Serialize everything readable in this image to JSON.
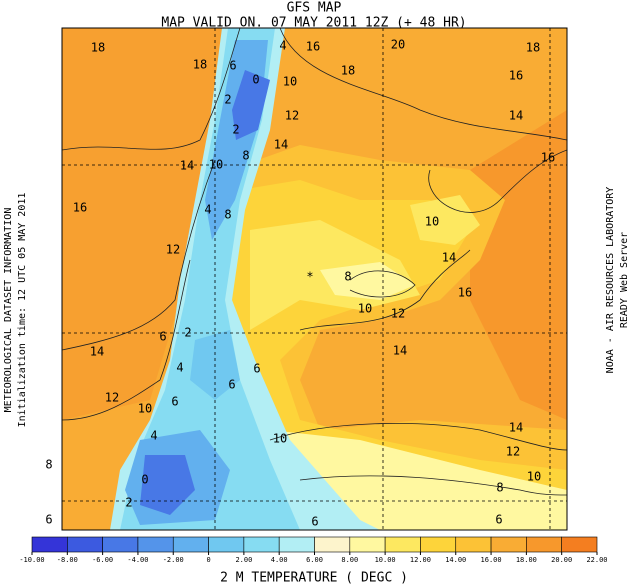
{
  "header": {
    "title": "GFS MAP",
    "subtitle": "MAP VALID ON. 07 MAY 2011 12Z (+ 48 HR)"
  },
  "side": {
    "left": [
      "METEOROLOGICAL DATASET INFORMATION",
      "Initialization time: 12 UTC 05 MAY 2011"
    ],
    "right": [
      "NOAA - AIR RESOURCES LABORATORY",
      "READY Web Server"
    ]
  },
  "map": {
    "contour_labels": [
      "18",
      "18",
      "6",
      "4",
      "16",
      "20",
      "18",
      "18",
      "16",
      "0",
      "10",
      "2",
      "12",
      "14",
      "2",
      "14",
      "10",
      "8",
      "14",
      "16",
      "16",
      "4",
      "8",
      "10",
      "12",
      "8",
      "14",
      "16",
      "10",
      "12",
      "2",
      "6",
      "14",
      "14",
      "4",
      "6",
      "6",
      "12",
      "6",
      "10",
      "4",
      "14",
      "10",
      "12",
      "8",
      "10",
      "8",
      "0",
      "2",
      "6",
      "6",
      "6"
    ],
    "marker": "*"
  },
  "colorbar": {
    "label": "2 M TEMPERATURE ( DEGC )",
    "ticks": [
      {
        "value": -10,
        "label": "-10.00"
      },
      {
        "value": -8,
        "label": "-8.00"
      },
      {
        "value": -6,
        "label": "-6.00"
      },
      {
        "value": -4,
        "label": "-4.00"
      },
      {
        "value": -2,
        "label": "-2.00"
      },
      {
        "value": 0,
        "label": "0"
      },
      {
        "value": 2,
        "label": "2.00"
      },
      {
        "value": 4,
        "label": "4.00"
      },
      {
        "value": 6,
        "label": "6.00"
      },
      {
        "value": 8,
        "label": "8.00"
      },
      {
        "value": 10,
        "label": "10.00"
      },
      {
        "value": 12,
        "label": "12.00"
      },
      {
        "value": 14,
        "label": "14.00"
      },
      {
        "value": 16,
        "label": "16.00"
      },
      {
        "value": 18,
        "label": "18.00"
      },
      {
        "value": 20,
        "label": "20.00"
      },
      {
        "value": 22,
        "label": "22.00"
      }
    ],
    "colors": [
      "#3434d8",
      "#3c5ae0",
      "#4878e6",
      "#5494ea",
      "#62b0ee",
      "#70c8f0",
      "#86dcf2",
      "#b2eef4",
      "#fdf4cc",
      "#fff8a0",
      "#fde860",
      "#fdd43a",
      "#fcc236",
      "#f9ac34",
      "#f7982c",
      "#f47e20"
    ]
  }
}
